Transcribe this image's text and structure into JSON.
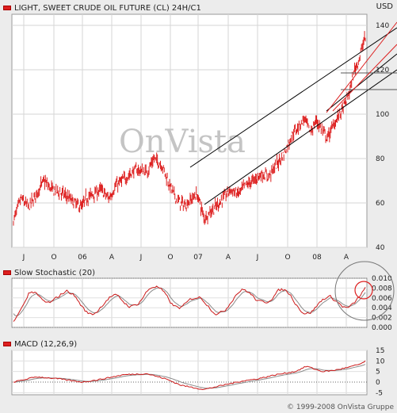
{
  "chart_data": [
    {
      "type": "candlestick",
      "title": "LIGHT, SWEET CRUDE OIL FUTURE (CL) 24H/C1",
      "unit_label": "USD",
      "watermark": "OnVista",
      "x_tick_labels": [
        "J",
        "O",
        "06",
        "A",
        "J",
        "O",
        "07",
        "A",
        "J",
        "O",
        "08",
        "A"
      ],
      "ylim": [
        40,
        145
      ],
      "y_ticks": [
        40,
        60,
        80,
        100,
        120,
        140
      ],
      "grid": true,
      "series_color": "#dd1f1f",
      "anchors": [
        [
          0,
          52
        ],
        [
          10,
          62
        ],
        [
          20,
          58
        ],
        [
          30,
          64
        ],
        [
          40,
          70
        ],
        [
          50,
          66
        ],
        [
          60,
          65
        ],
        [
          70,
          63
        ],
        [
          80,
          60
        ],
        [
          90,
          58
        ],
        [
          95,
          62
        ],
        [
          105,
          64
        ],
        [
          115,
          66
        ],
        [
          125,
          62
        ],
        [
          135,
          68
        ],
        [
          150,
          72
        ],
        [
          160,
          75
        ],
        [
          175,
          74
        ],
        [
          185,
          80
        ],
        [
          195,
          77
        ],
        [
          205,
          68
        ],
        [
          215,
          61
        ],
        [
          225,
          59
        ],
        [
          235,
          62
        ],
        [
          240,
          64
        ],
        [
          245,
          60
        ],
        [
          250,
          53
        ],
        [
          258,
          56
        ],
        [
          265,
          58
        ],
        [
          275,
          62
        ],
        [
          285,
          66
        ],
        [
          295,
          64
        ],
        [
          305,
          68
        ],
        [
          315,
          70
        ],
        [
          325,
          73
        ],
        [
          335,
          72
        ],
        [
          345,
          77
        ],
        [
          355,
          82
        ],
        [
          365,
          90
        ],
        [
          375,
          95
        ],
        [
          382,
          98
        ],
        [
          390,
          92
        ],
        [
          398,
          97
        ],
        [
          405,
          93
        ],
        [
          412,
          89
        ],
        [
          420,
          95
        ],
        [
          428,
          100
        ],
        [
          435,
          104
        ],
        [
          442,
          111
        ],
        [
          448,
          120
        ],
        [
          455,
          126
        ],
        [
          460,
          133
        ],
        [
          463,
          135
        ]
      ]
    },
    {
      "type": "line",
      "title": "Slow Stochastic (20)",
      "y_ticks": [
        0.0,
        0.002,
        0.004,
        0.006,
        0.008,
        0.01
      ],
      "y_tick_labels": [
        "0.000",
        "0.002",
        "0.004",
        "0.006",
        "0.008",
        "0.010"
      ],
      "ylim": [
        0,
        0.01
      ],
      "series_color": "#cc1a1a",
      "signal_color": "#8a8a8a"
    },
    {
      "type": "line",
      "title": "MACD (12,26,9)",
      "y_ticks": [
        -5,
        0,
        5,
        10,
        15
      ],
      "ylim": [
        -6,
        15
      ],
      "series_color": "#cc1a1a",
      "signal_color": "#8a8a8a",
      "anchors": [
        [
          0,
          0
        ],
        [
          30,
          2.5
        ],
        [
          60,
          1.5
        ],
        [
          90,
          0
        ],
        [
          110,
          1
        ],
        [
          145,
          3.5
        ],
        [
          175,
          4
        ],
        [
          200,
          1.5
        ],
        [
          220,
          -1.5
        ],
        [
          250,
          -3.5
        ],
        [
          275,
          -1.5
        ],
        [
          300,
          0.5
        ],
        [
          320,
          1.5
        ],
        [
          345,
          3.5
        ],
        [
          370,
          5
        ],
        [
          385,
          7.5
        ],
        [
          405,
          5
        ],
        [
          420,
          5.5
        ],
        [
          440,
          7
        ],
        [
          455,
          8.5
        ],
        [
          463,
          10
        ]
      ]
    }
  ],
  "copyright": "© 1999-2008 OnVista Gruppe"
}
